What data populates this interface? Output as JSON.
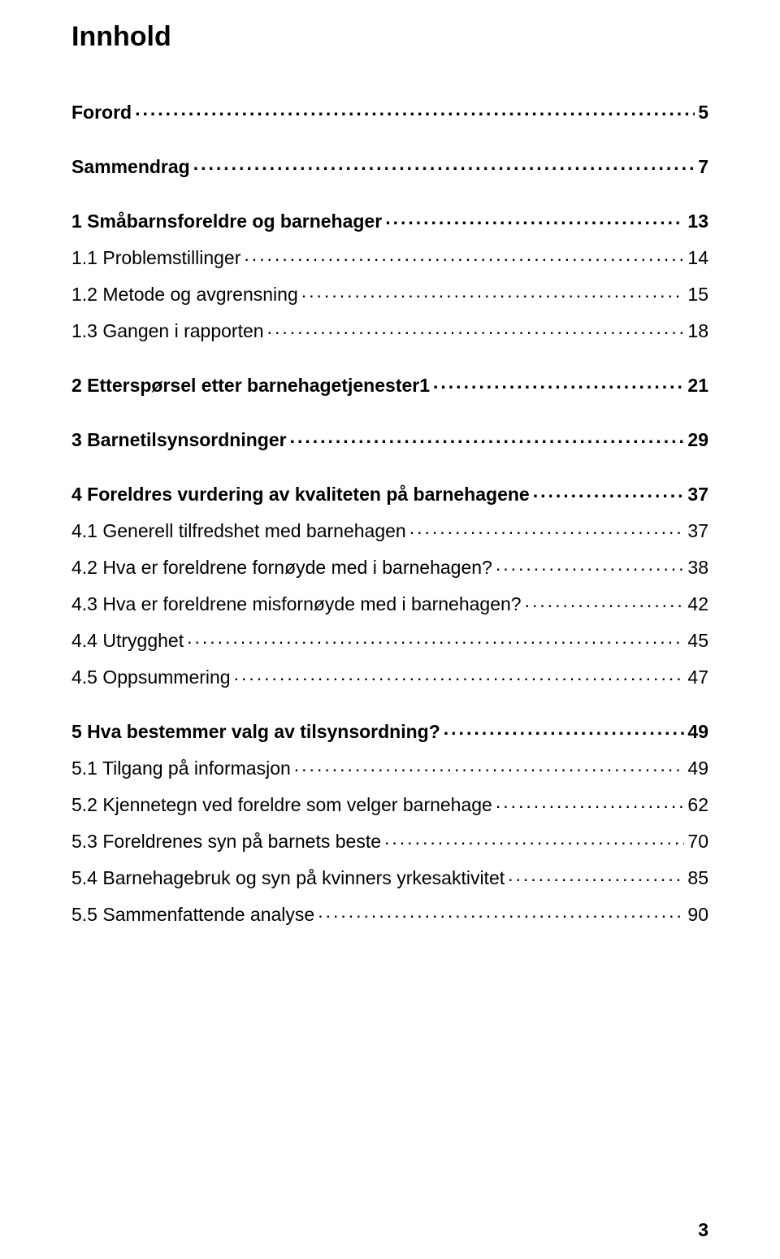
{
  "title": "Innhold",
  "page_number": "3",
  "entries": [
    {
      "label": "Forord",
      "page": "5",
      "bold": true,
      "gap_before": false
    },
    {
      "label": "Sammendrag",
      "page": "7",
      "bold": true,
      "gap_before": true
    },
    {
      "label": "1 Småbarnsforeldre og barnehager",
      "page": "13",
      "bold": true,
      "gap_before": true
    },
    {
      "label": "1.1 Problemstillinger",
      "page": "14",
      "bold": false,
      "gap_before": false
    },
    {
      "label": "1.2 Metode og avgrensning",
      "page": "15",
      "bold": false,
      "gap_before": false
    },
    {
      "label": "1.3 Gangen i rapporten",
      "page": "18",
      "bold": false,
      "gap_before": false
    },
    {
      "label": "2 Etterspørsel etter barnehagetjenester1",
      "page": "21",
      "bold": true,
      "gap_before": true
    },
    {
      "label": "3 Barnetilsynsordninger",
      "page": "29",
      "bold": true,
      "gap_before": true
    },
    {
      "label": "4 Foreldres vurdering av kvaliteten på barnehagene",
      "page": "37",
      "bold": true,
      "gap_before": true
    },
    {
      "label": "4.1 Generell tilfredshet med barnehagen",
      "page": "37",
      "bold": false,
      "gap_before": false
    },
    {
      "label": "4.2 Hva er foreldrene fornøyde med i barnehagen?",
      "page": "38",
      "bold": false,
      "gap_before": false
    },
    {
      "label": "4.3 Hva er foreldrene misfornøyde med i barnehagen?",
      "page": "42",
      "bold": false,
      "gap_before": false
    },
    {
      "label": "4.4 Utrygghet",
      "page": "45",
      "bold": false,
      "gap_before": false
    },
    {
      "label": "4.5 Oppsummering",
      "page": "47",
      "bold": false,
      "gap_before": false
    },
    {
      "label": "5 Hva bestemmer valg av tilsynsordning?",
      "page": "49",
      "bold": true,
      "gap_before": true
    },
    {
      "label": "5.1 Tilgang på informasjon",
      "page": "49",
      "bold": false,
      "gap_before": false
    },
    {
      "label": "5.2 Kjennetegn ved foreldre som velger barnehage",
      "page": "62",
      "bold": false,
      "gap_before": false
    },
    {
      "label": "5.3 Foreldrenes syn på barnets beste",
      "page": "70",
      "bold": false,
      "gap_before": false
    },
    {
      "label": "5.4 Barnehagebruk og syn på kvinners yrkesaktivitet",
      "page": "85",
      "bold": false,
      "gap_before": false
    },
    {
      "label": "5.5 Sammenfattende analyse",
      "page": "90",
      "bold": false,
      "gap_before": false
    }
  ]
}
